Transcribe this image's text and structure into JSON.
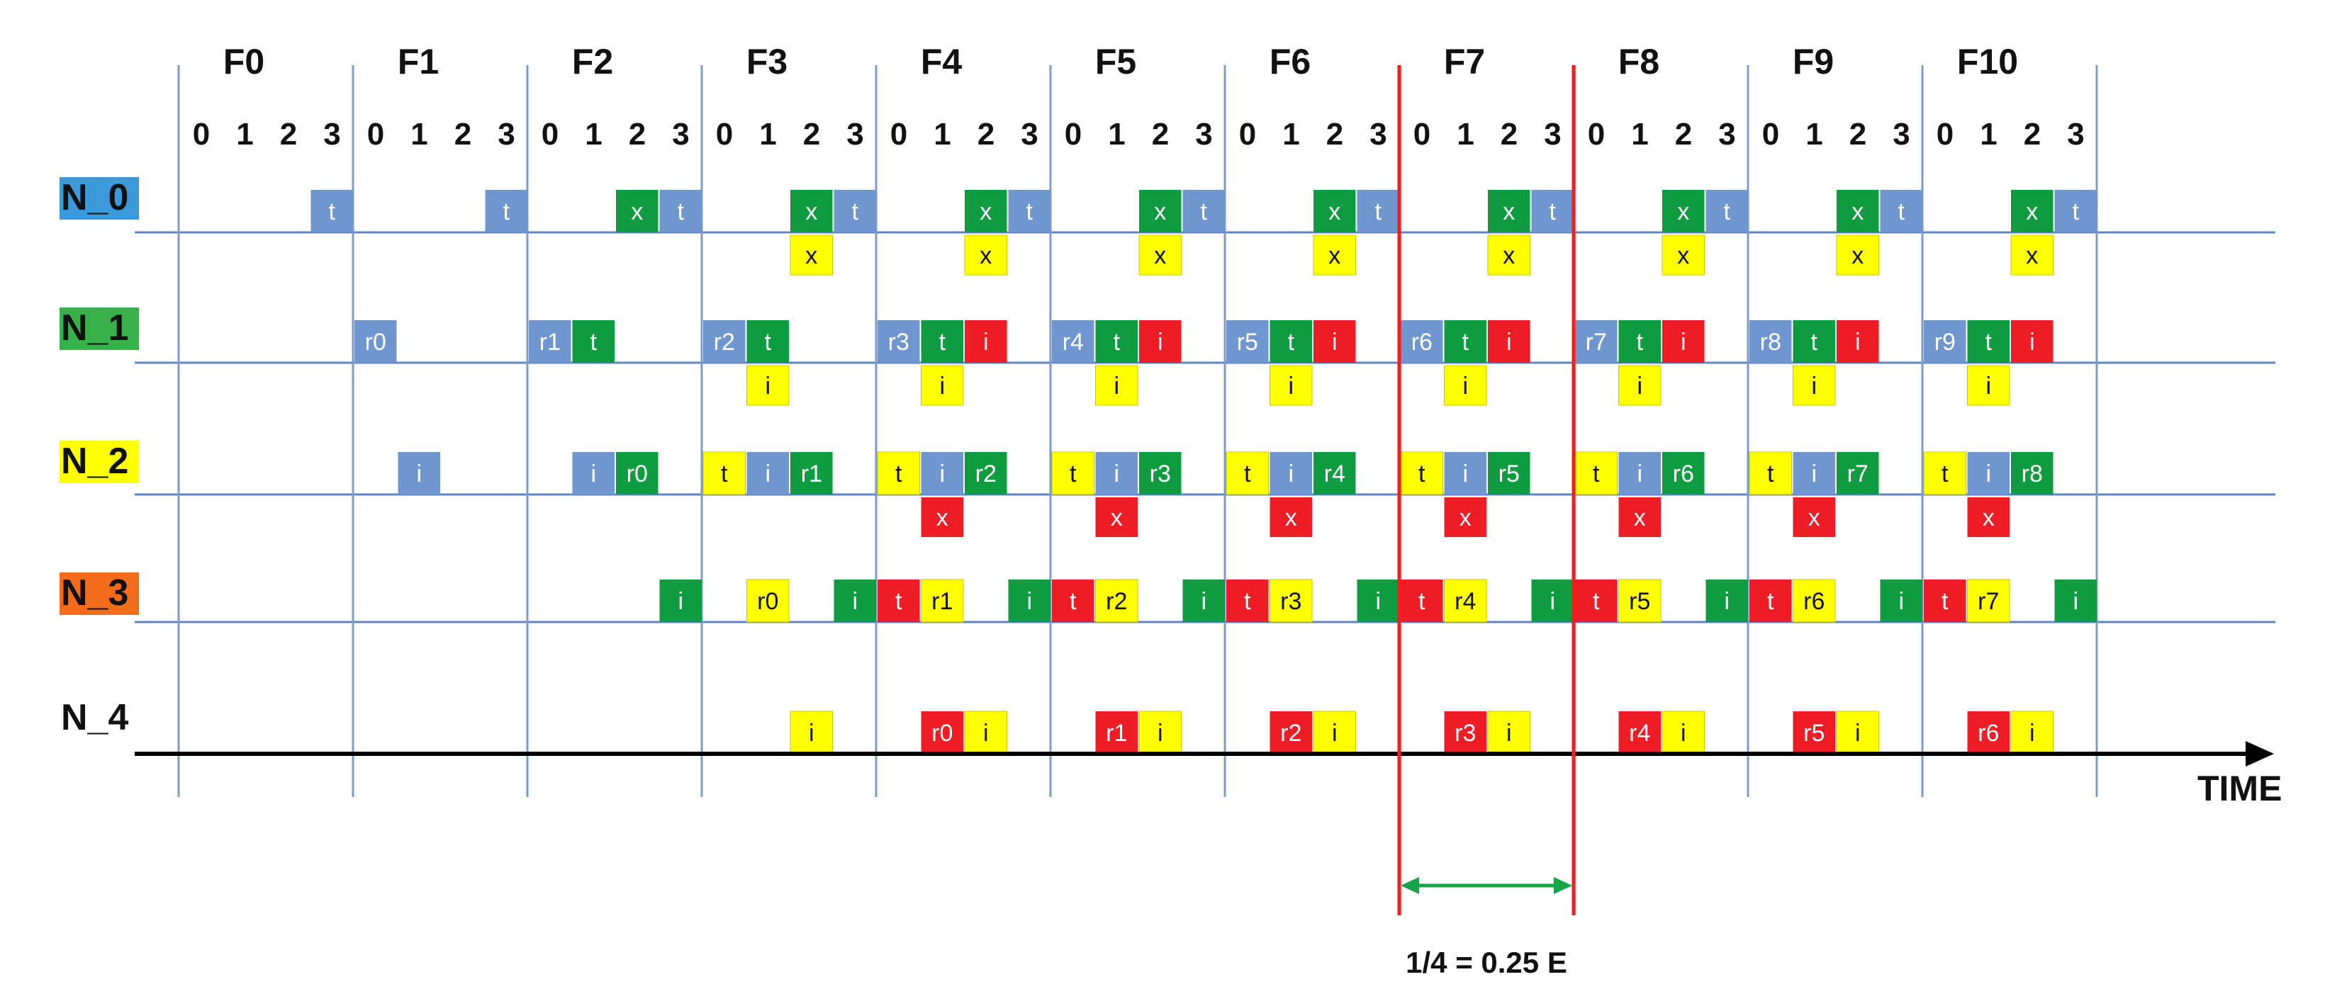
{
  "frames": [
    "F0",
    "F1",
    "F2",
    "F3",
    "F4",
    "F5",
    "F6",
    "F7",
    "F8",
    "F9",
    "F10"
  ],
  "slot_labels": [
    "0",
    "1",
    "2",
    "3"
  ],
  "rows": [
    {
      "label": "N_0",
      "label_bg": "#3a9ad9"
    },
    {
      "label": "N_1",
      "label_bg": "#37b24a"
    },
    {
      "label": "N_2",
      "label_bg": "#ffff00"
    },
    {
      "label": "N_3",
      "label_bg": "#f26c1c"
    },
    {
      "label": "N_4",
      "label_bg": ""
    }
  ],
  "colors": {
    "blue": "#6f96cf",
    "green": "#0f9b3f",
    "red": "#ee1c25",
    "yellow": "#ffff00",
    "frame_line": "#7d9ac8",
    "row_line": "#5f86c2",
    "highlight_line": "#ff1a1a",
    "measure_arrow": "#16a34a",
    "axis": "#000000"
  },
  "time_label": "TIME",
  "measurement_label": "1/4 = 0.25 E",
  "highlight_frame": "F7",
  "cells": [
    {
      "row": 0,
      "frame": 0,
      "slot": 3,
      "text": "t",
      "color": "blue",
      "pos": "top"
    },
    {
      "row": 0,
      "frame": 1,
      "slot": 3,
      "text": "t",
      "color": "blue",
      "pos": "top"
    },
    {
      "row": 0,
      "frame": 2,
      "slot": 2,
      "text": "x",
      "color": "green",
      "pos": "top"
    },
    {
      "row": 0,
      "frame": 2,
      "slot": 3,
      "text": "t",
      "color": "blue",
      "pos": "top"
    },
    {
      "row": 0,
      "frame": 3,
      "slot": 2,
      "text": "x",
      "color": "green",
      "pos": "top"
    },
    {
      "row": 0,
      "frame": 3,
      "slot": 3,
      "text": "t",
      "color": "blue",
      "pos": "top"
    },
    {
      "row": 0,
      "frame": 3,
      "slot": 2,
      "text": "x",
      "color": "yellow",
      "pos": "below"
    },
    {
      "row": 0,
      "frame": 4,
      "slot": 2,
      "text": "x",
      "color": "green",
      "pos": "top"
    },
    {
      "row": 0,
      "frame": 4,
      "slot": 3,
      "text": "t",
      "color": "blue",
      "pos": "top"
    },
    {
      "row": 0,
      "frame": 4,
      "slot": 2,
      "text": "x",
      "color": "yellow",
      "pos": "below"
    },
    {
      "row": 0,
      "frame": 5,
      "slot": 2,
      "text": "x",
      "color": "green",
      "pos": "top"
    },
    {
      "row": 0,
      "frame": 5,
      "slot": 3,
      "text": "t",
      "color": "blue",
      "pos": "top"
    },
    {
      "row": 0,
      "frame": 5,
      "slot": 2,
      "text": "x",
      "color": "yellow",
      "pos": "below"
    },
    {
      "row": 0,
      "frame": 6,
      "slot": 2,
      "text": "x",
      "color": "green",
      "pos": "top"
    },
    {
      "row": 0,
      "frame": 6,
      "slot": 3,
      "text": "t",
      "color": "blue",
      "pos": "top"
    },
    {
      "row": 0,
      "frame": 6,
      "slot": 2,
      "text": "x",
      "color": "yellow",
      "pos": "below"
    },
    {
      "row": 0,
      "frame": 7,
      "slot": 2,
      "text": "x",
      "color": "green",
      "pos": "top"
    },
    {
      "row": 0,
      "frame": 7,
      "slot": 3,
      "text": "t",
      "color": "blue",
      "pos": "top"
    },
    {
      "row": 0,
      "frame": 7,
      "slot": 2,
      "text": "x",
      "color": "yellow",
      "pos": "below"
    },
    {
      "row": 0,
      "frame": 8,
      "slot": 2,
      "text": "x",
      "color": "green",
      "pos": "top"
    },
    {
      "row": 0,
      "frame": 8,
      "slot": 3,
      "text": "t",
      "color": "blue",
      "pos": "top"
    },
    {
      "row": 0,
      "frame": 8,
      "slot": 2,
      "text": "x",
      "color": "yellow",
      "pos": "below"
    },
    {
      "row": 0,
      "frame": 9,
      "slot": 2,
      "text": "x",
      "color": "green",
      "pos": "top"
    },
    {
      "row": 0,
      "frame": 9,
      "slot": 3,
      "text": "t",
      "color": "blue",
      "pos": "top"
    },
    {
      "row": 0,
      "frame": 9,
      "slot": 2,
      "text": "x",
      "color": "yellow",
      "pos": "below"
    },
    {
      "row": 0,
      "frame": 10,
      "slot": 2,
      "text": "x",
      "color": "green",
      "pos": "top"
    },
    {
      "row": 0,
      "frame": 10,
      "slot": 3,
      "text": "t",
      "color": "blue",
      "pos": "top"
    },
    {
      "row": 0,
      "frame": 10,
      "slot": 2,
      "text": "x",
      "color": "yellow",
      "pos": "below"
    },
    {
      "row": 1,
      "frame": 1,
      "slot": 0,
      "text": "r0",
      "color": "blue",
      "pos": "top"
    },
    {
      "row": 1,
      "frame": 2,
      "slot": 0,
      "text": "r1",
      "color": "blue",
      "pos": "top"
    },
    {
      "row": 1,
      "frame": 2,
      "slot": 1,
      "text": "t",
      "color": "green",
      "pos": "top"
    },
    {
      "row": 1,
      "frame": 3,
      "slot": 0,
      "text": "r2",
      "color": "blue",
      "pos": "top"
    },
    {
      "row": 1,
      "frame": 3,
      "slot": 1,
      "text": "t",
      "color": "green",
      "pos": "top"
    },
    {
      "row": 1,
      "frame": 3,
      "slot": 1,
      "text": "i",
      "color": "yellow",
      "pos": "below"
    },
    {
      "row": 1,
      "frame": 4,
      "slot": 0,
      "text": "r3",
      "color": "blue",
      "pos": "top"
    },
    {
      "row": 1,
      "frame": 4,
      "slot": 1,
      "text": "t",
      "color": "green",
      "pos": "top"
    },
    {
      "row": 1,
      "frame": 4,
      "slot": 2,
      "text": "i",
      "color": "red",
      "pos": "top"
    },
    {
      "row": 1,
      "frame": 4,
      "slot": 1,
      "text": "i",
      "color": "yellow",
      "pos": "below"
    },
    {
      "row": 1,
      "frame": 5,
      "slot": 0,
      "text": "r4",
      "color": "blue",
      "pos": "top"
    },
    {
      "row": 1,
      "frame": 5,
      "slot": 1,
      "text": "t",
      "color": "green",
      "pos": "top"
    },
    {
      "row": 1,
      "frame": 5,
      "slot": 2,
      "text": "i",
      "color": "red",
      "pos": "top"
    },
    {
      "row": 1,
      "frame": 5,
      "slot": 1,
      "text": "i",
      "color": "yellow",
      "pos": "below"
    },
    {
      "row": 1,
      "frame": 6,
      "slot": 0,
      "text": "r5",
      "color": "blue",
      "pos": "top"
    },
    {
      "row": 1,
      "frame": 6,
      "slot": 1,
      "text": "t",
      "color": "green",
      "pos": "top"
    },
    {
      "row": 1,
      "frame": 6,
      "slot": 2,
      "text": "i",
      "color": "red",
      "pos": "top"
    },
    {
      "row": 1,
      "frame": 6,
      "slot": 1,
      "text": "i",
      "color": "yellow",
      "pos": "below"
    },
    {
      "row": 1,
      "frame": 7,
      "slot": 0,
      "text": "r6",
      "color": "blue",
      "pos": "top"
    },
    {
      "row": 1,
      "frame": 7,
      "slot": 1,
      "text": "t",
      "color": "green",
      "pos": "top"
    },
    {
      "row": 1,
      "frame": 7,
      "slot": 2,
      "text": "i",
      "color": "red",
      "pos": "top"
    },
    {
      "row": 1,
      "frame": 7,
      "slot": 1,
      "text": "i",
      "color": "yellow",
      "pos": "below"
    },
    {
      "row": 1,
      "frame": 8,
      "slot": 0,
      "text": "r7",
      "color": "blue",
      "pos": "top"
    },
    {
      "row": 1,
      "frame": 8,
      "slot": 1,
      "text": "t",
      "color": "green",
      "pos": "top"
    },
    {
      "row": 1,
      "frame": 8,
      "slot": 2,
      "text": "i",
      "color": "red",
      "pos": "top"
    },
    {
      "row": 1,
      "frame": 8,
      "slot": 1,
      "text": "i",
      "color": "yellow",
      "pos": "below"
    },
    {
      "row": 1,
      "frame": 9,
      "slot": 0,
      "text": "r8",
      "color": "blue",
      "pos": "top"
    },
    {
      "row": 1,
      "frame": 9,
      "slot": 1,
      "text": "t",
      "color": "green",
      "pos": "top"
    },
    {
      "row": 1,
      "frame": 9,
      "slot": 2,
      "text": "i",
      "color": "red",
      "pos": "top"
    },
    {
      "row": 1,
      "frame": 9,
      "slot": 1,
      "text": "i",
      "color": "yellow",
      "pos": "below"
    },
    {
      "row": 1,
      "frame": 10,
      "slot": 0,
      "text": "r9",
      "color": "blue",
      "pos": "top"
    },
    {
      "row": 1,
      "frame": 10,
      "slot": 1,
      "text": "t",
      "color": "green",
      "pos": "top"
    },
    {
      "row": 1,
      "frame": 10,
      "slot": 2,
      "text": "i",
      "color": "red",
      "pos": "top"
    },
    {
      "row": 1,
      "frame": 10,
      "slot": 1,
      "text": "i",
      "color": "yellow",
      "pos": "below"
    },
    {
      "row": 2,
      "frame": 1,
      "slot": 1,
      "text": "i",
      "color": "blue",
      "pos": "top"
    },
    {
      "row": 2,
      "frame": 2,
      "slot": 1,
      "text": "i",
      "color": "blue",
      "pos": "top"
    },
    {
      "row": 2,
      "frame": 2,
      "slot": 2,
      "text": "r0",
      "color": "green",
      "pos": "top"
    },
    {
      "row": 2,
      "frame": 3,
      "slot": 0,
      "text": "t",
      "color": "yellow",
      "pos": "top"
    },
    {
      "row": 2,
      "frame": 3,
      "slot": 1,
      "text": "i",
      "color": "blue",
      "pos": "top"
    },
    {
      "row": 2,
      "frame": 3,
      "slot": 2,
      "text": "r1",
      "color": "green",
      "pos": "top"
    },
    {
      "row": 2,
      "frame": 4,
      "slot": 0,
      "text": "t",
      "color": "yellow",
      "pos": "top"
    },
    {
      "row": 2,
      "frame": 4,
      "slot": 1,
      "text": "i",
      "color": "blue",
      "pos": "top"
    },
    {
      "row": 2,
      "frame": 4,
      "slot": 2,
      "text": "r2",
      "color": "green",
      "pos": "top"
    },
    {
      "row": 2,
      "frame": 4,
      "slot": 1,
      "text": "x",
      "color": "red",
      "pos": "below"
    },
    {
      "row": 2,
      "frame": 5,
      "slot": 0,
      "text": "t",
      "color": "yellow",
      "pos": "top"
    },
    {
      "row": 2,
      "frame": 5,
      "slot": 1,
      "text": "i",
      "color": "blue",
      "pos": "top"
    },
    {
      "row": 2,
      "frame": 5,
      "slot": 2,
      "text": "r3",
      "color": "green",
      "pos": "top"
    },
    {
      "row": 2,
      "frame": 5,
      "slot": 1,
      "text": "x",
      "color": "red",
      "pos": "below"
    },
    {
      "row": 2,
      "frame": 6,
      "slot": 0,
      "text": "t",
      "color": "yellow",
      "pos": "top"
    },
    {
      "row": 2,
      "frame": 6,
      "slot": 1,
      "text": "i",
      "color": "blue",
      "pos": "top"
    },
    {
      "row": 2,
      "frame": 6,
      "slot": 2,
      "text": "r4",
      "color": "green",
      "pos": "top"
    },
    {
      "row": 2,
      "frame": 6,
      "slot": 1,
      "text": "x",
      "color": "red",
      "pos": "below"
    },
    {
      "row": 2,
      "frame": 7,
      "slot": 0,
      "text": "t",
      "color": "yellow",
      "pos": "top"
    },
    {
      "row": 2,
      "frame": 7,
      "slot": 1,
      "text": "i",
      "color": "blue",
      "pos": "top"
    },
    {
      "row": 2,
      "frame": 7,
      "slot": 2,
      "text": "r5",
      "color": "green",
      "pos": "top"
    },
    {
      "row": 2,
      "frame": 7,
      "slot": 1,
      "text": "x",
      "color": "red",
      "pos": "below"
    },
    {
      "row": 2,
      "frame": 8,
      "slot": 0,
      "text": "t",
      "color": "yellow",
      "pos": "top"
    },
    {
      "row": 2,
      "frame": 8,
      "slot": 1,
      "text": "i",
      "color": "blue",
      "pos": "top"
    },
    {
      "row": 2,
      "frame": 8,
      "slot": 2,
      "text": "r6",
      "color": "green",
      "pos": "top"
    },
    {
      "row": 2,
      "frame": 8,
      "slot": 1,
      "text": "x",
      "color": "red",
      "pos": "below"
    },
    {
      "row": 2,
      "frame": 9,
      "slot": 0,
      "text": "t",
      "color": "yellow",
      "pos": "top"
    },
    {
      "row": 2,
      "frame": 9,
      "slot": 1,
      "text": "i",
      "color": "blue",
      "pos": "top"
    },
    {
      "row": 2,
      "frame": 9,
      "slot": 2,
      "text": "r7",
      "color": "green",
      "pos": "top"
    },
    {
      "row": 2,
      "frame": 9,
      "slot": 1,
      "text": "x",
      "color": "red",
      "pos": "below"
    },
    {
      "row": 2,
      "frame": 10,
      "slot": 0,
      "text": "t",
      "color": "yellow",
      "pos": "top"
    },
    {
      "row": 2,
      "frame": 10,
      "slot": 1,
      "text": "i",
      "color": "blue",
      "pos": "top"
    },
    {
      "row": 2,
      "frame": 10,
      "slot": 2,
      "text": "r8",
      "color": "green",
      "pos": "top"
    },
    {
      "row": 2,
      "frame": 10,
      "slot": 1,
      "text": "x",
      "color": "red",
      "pos": "below"
    },
    {
      "row": 3,
      "frame": 2,
      "slot": 3,
      "text": "i",
      "color": "green",
      "pos": "top"
    },
    {
      "row": 3,
      "frame": 3,
      "slot": 1,
      "text": "r0",
      "color": "yellow",
      "pos": "top"
    },
    {
      "row": 3,
      "frame": 3,
      "slot": 3,
      "text": "i",
      "color": "green",
      "pos": "top"
    },
    {
      "row": 3,
      "frame": 4,
      "slot": 0,
      "text": "t",
      "color": "red",
      "pos": "top"
    },
    {
      "row": 3,
      "frame": 4,
      "slot": 1,
      "text": "r1",
      "color": "yellow",
      "pos": "top"
    },
    {
      "row": 3,
      "frame": 4,
      "slot": 3,
      "text": "i",
      "color": "green",
      "pos": "top"
    },
    {
      "row": 3,
      "frame": 5,
      "slot": 0,
      "text": "t",
      "color": "red",
      "pos": "top"
    },
    {
      "row": 3,
      "frame": 5,
      "slot": 1,
      "text": "r2",
      "color": "yellow",
      "pos": "top"
    },
    {
      "row": 3,
      "frame": 5,
      "slot": 3,
      "text": "i",
      "color": "green",
      "pos": "top"
    },
    {
      "row": 3,
      "frame": 6,
      "slot": 0,
      "text": "t",
      "color": "red",
      "pos": "top"
    },
    {
      "row": 3,
      "frame": 6,
      "slot": 1,
      "text": "r3",
      "color": "yellow",
      "pos": "top"
    },
    {
      "row": 3,
      "frame": 6,
      "slot": 3,
      "text": "i",
      "color": "green",
      "pos": "top"
    },
    {
      "row": 3,
      "frame": 7,
      "slot": 0,
      "text": "t",
      "color": "red",
      "pos": "top"
    },
    {
      "row": 3,
      "frame": 7,
      "slot": 1,
      "text": "r4",
      "color": "yellow",
      "pos": "top"
    },
    {
      "row": 3,
      "frame": 7,
      "slot": 3,
      "text": "i",
      "color": "green",
      "pos": "top"
    },
    {
      "row": 3,
      "frame": 8,
      "slot": 0,
      "text": "t",
      "color": "red",
      "pos": "top"
    },
    {
      "row": 3,
      "frame": 8,
      "slot": 1,
      "text": "r5",
      "color": "yellow",
      "pos": "top"
    },
    {
      "row": 3,
      "frame": 8,
      "slot": 3,
      "text": "i",
      "color": "green",
      "pos": "top"
    },
    {
      "row": 3,
      "frame": 9,
      "slot": 0,
      "text": "t",
      "color": "red",
      "pos": "top"
    },
    {
      "row": 3,
      "frame": 9,
      "slot": 1,
      "text": "r6",
      "color": "yellow",
      "pos": "top"
    },
    {
      "row": 3,
      "frame": 9,
      "slot": 3,
      "text": "i",
      "color": "green",
      "pos": "top"
    },
    {
      "row": 3,
      "frame": 10,
      "slot": 0,
      "text": "t",
      "color": "red",
      "pos": "top"
    },
    {
      "row": 3,
      "frame": 10,
      "slot": 1,
      "text": "r7",
      "color": "yellow",
      "pos": "top"
    },
    {
      "row": 3,
      "frame": 10,
      "slot": 3,
      "text": "i",
      "color": "green",
      "pos": "top"
    },
    {
      "row": 4,
      "frame": 3,
      "slot": 2,
      "text": "i",
      "color": "yellow",
      "pos": "top"
    },
    {
      "row": 4,
      "frame": 4,
      "slot": 1,
      "text": "r0",
      "color": "red",
      "pos": "top"
    },
    {
      "row": 4,
      "frame": 4,
      "slot": 2,
      "text": "i",
      "color": "yellow",
      "pos": "top"
    },
    {
      "row": 4,
      "frame": 5,
      "slot": 1,
      "text": "r1",
      "color": "red",
      "pos": "top"
    },
    {
      "row": 4,
      "frame": 5,
      "slot": 2,
      "text": "i",
      "color": "yellow",
      "pos": "top"
    },
    {
      "row": 4,
      "frame": 6,
      "slot": 1,
      "text": "r2",
      "color": "red",
      "pos": "top"
    },
    {
      "row": 4,
      "frame": 6,
      "slot": 2,
      "text": "i",
      "color": "yellow",
      "pos": "top"
    },
    {
      "row": 4,
      "frame": 7,
      "slot": 1,
      "text": "r3",
      "color": "red",
      "pos": "top"
    },
    {
      "row": 4,
      "frame": 7,
      "slot": 2,
      "text": "i",
      "color": "yellow",
      "pos": "top"
    },
    {
      "row": 4,
      "frame": 8,
      "slot": 1,
      "text": "r4",
      "color": "red",
      "pos": "top"
    },
    {
      "row": 4,
      "frame": 8,
      "slot": 2,
      "text": "i",
      "color": "yellow",
      "pos": "top"
    },
    {
      "row": 4,
      "frame": 9,
      "slot": 1,
      "text": "r5",
      "color": "red",
      "pos": "top"
    },
    {
      "row": 4,
      "frame": 9,
      "slot": 2,
      "text": "i",
      "color": "yellow",
      "pos": "top"
    },
    {
      "row": 4,
      "frame": 10,
      "slot": 1,
      "text": "r6",
      "color": "red",
      "pos": "top"
    },
    {
      "row": 4,
      "frame": 10,
      "slot": 2,
      "text": "i",
      "color": "yellow",
      "pos": "top"
    }
  ]
}
